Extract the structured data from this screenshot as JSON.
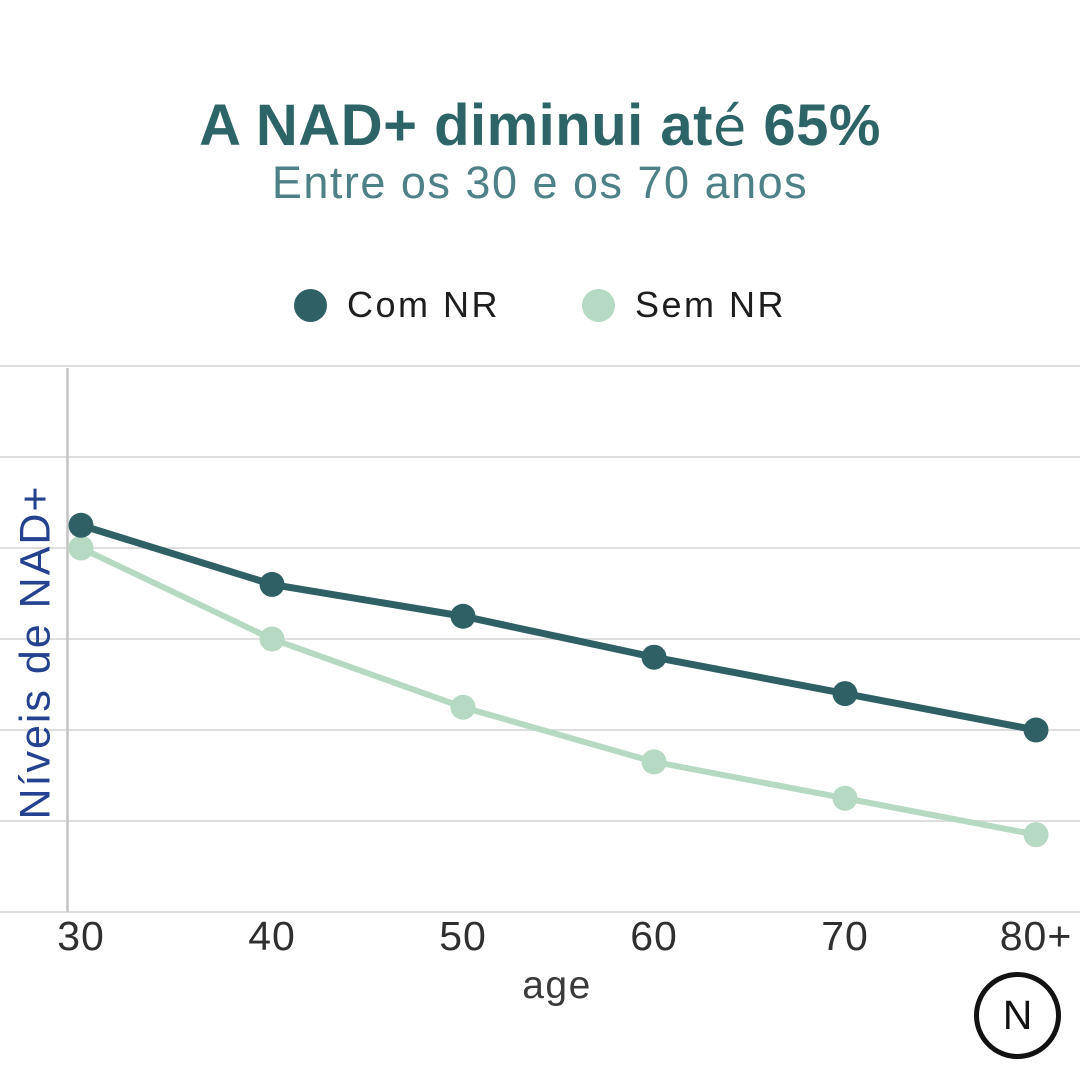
{
  "title": {
    "parts": [
      "A NAD+ diminui at",
      "é",
      " 65%"
    ]
  },
  "subtitle": "Entre os 30 e os 70 anos",
  "legend": [
    {
      "label": "Com NR",
      "color": "#2f6066"
    },
    {
      "label": "Sem NR",
      "color": "#b5d9c3"
    }
  ],
  "chart_data": {
    "type": "line",
    "categories": [
      "30",
      "40",
      "50",
      "60",
      "70",
      "80+"
    ],
    "series": [
      {
        "name": "Com NR",
        "color": "#2f6066",
        "values": [
          105,
          92,
          85,
          76,
          68,
          60
        ]
      },
      {
        "name": "Sem NR",
        "color": "#b5d9c3",
        "values": [
          100,
          80,
          65,
          53,
          45,
          37
        ]
      }
    ],
    "xlabel": "age",
    "ylabel": "Níveis de NAD+",
    "ylim": [
      20,
      140
    ],
    "grid_step": 20,
    "grid": true,
    "y_tick_labels_visible": false,
    "legend_position": "top"
  },
  "logo": {
    "letter": "N"
  },
  "colors": {
    "accent_dark": "#2f6066",
    "accent_light": "#b5d9c3",
    "title": "#2d6468",
    "subtitle": "#4e8187",
    "ylabel_text": "#24428f",
    "tick_text": "#2f2f2f",
    "grid": "#dedede",
    "axis": "#c4c4c4",
    "logo": "#121212"
  }
}
